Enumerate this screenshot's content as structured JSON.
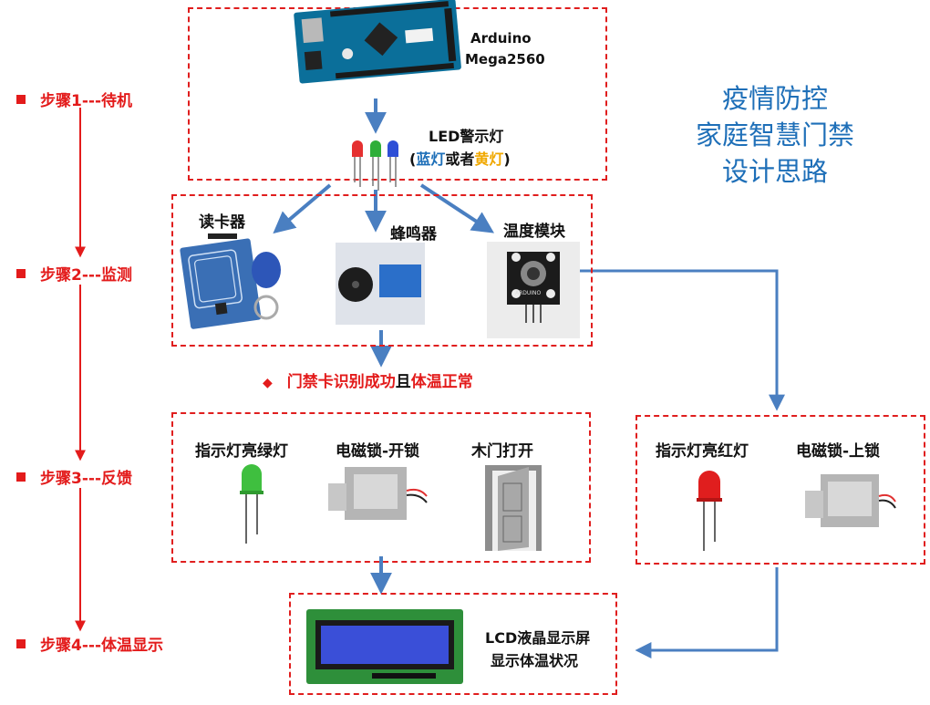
{
  "steps": [
    {
      "label": "步骤1---待机"
    },
    {
      "label": "步骤2---监测"
    },
    {
      "label": "步骤3---反馈"
    },
    {
      "label": "步骤4---体温显示"
    }
  ],
  "title_lines": [
    "疫情防控",
    "家庭智慧门禁",
    "设计思路"
  ],
  "arduino": {
    "line1": "Arduino",
    "line2": "Mega2560"
  },
  "led": {
    "line1": "LED警示灯",
    "open_paren": "(",
    "blue_word": "蓝灯",
    "mid_word": "或者",
    "yellow_word": "黄灯",
    "close_paren": ")"
  },
  "monitor": {
    "card_reader": "读卡器",
    "buzzer": "蜂鸣器",
    "temp_module": "温度模块",
    "temp_module_label": "ARDUINO"
  },
  "condition": {
    "text_red1": "门禁卡识别成功",
    "text_black": "且",
    "text_red2": "体温正常"
  },
  "feedback_ok": {
    "green_led": "指示灯亮绿灯",
    "lock_open": "电磁锁-开锁",
    "door_open": "木门打开"
  },
  "feedback_bad": {
    "red_led": "指示灯亮红灯",
    "lock_close": "电磁锁-上锁"
  },
  "lcd": {
    "line1": "LCD液晶显示屏",
    "line2": "显示体温状况"
  },
  "colors": {
    "red": "#e31b1b",
    "blue": "#1e6fb8",
    "arrow": "#4a7fc1",
    "yellow": "#f0a800"
  }
}
